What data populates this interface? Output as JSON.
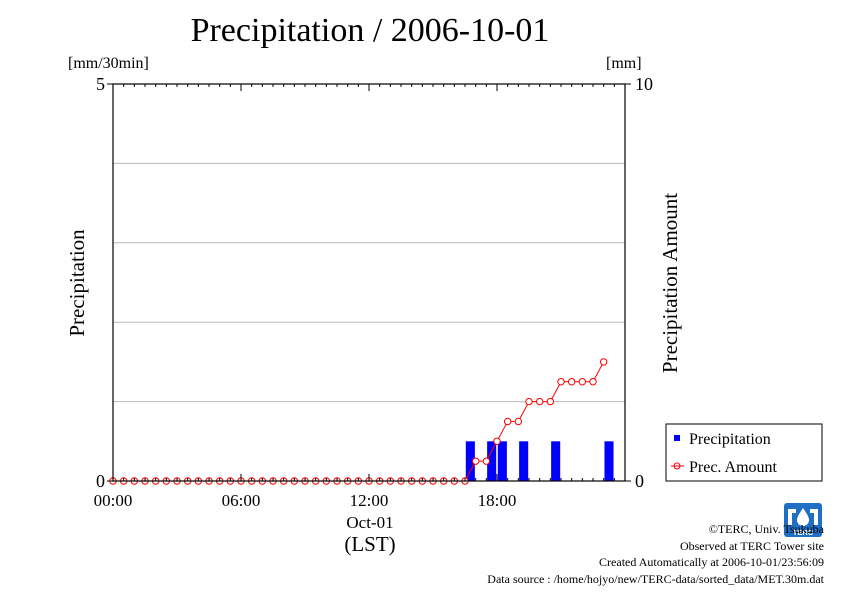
{
  "chart_data": {
    "type": "bar+line",
    "title": "Precipitation / 2006-10-01",
    "left_unit": "[mm/30min]",
    "right_unit": "[mm]",
    "ylabel_left": "Precipitation",
    "ylabel_right": "Precipitation Amount",
    "xlabel_date": "Oct-01",
    "xlabel_tz": "(LST)",
    "x_ticks": [
      "00:00",
      "06:00",
      "12:00",
      "18:00"
    ],
    "y_left_ticks": [
      "0",
      "5"
    ],
    "y_right_ticks": [
      "0",
      "10"
    ],
    "ylim_left": [
      0,
      5
    ],
    "ylim_right": [
      0,
      10
    ],
    "xlim_hours": [
      0,
      24
    ],
    "grid": true,
    "legend_position": "bottom-right",
    "series": [
      {
        "name": "Precipitation",
        "kind": "bar",
        "color": "#0000ff",
        "x_hours": [
          16.5,
          17.5,
          18.0,
          19.0,
          20.5,
          23.0
        ],
        "values": [
          0.5,
          0.5,
          0.5,
          0.5,
          0.5,
          0.5
        ]
      },
      {
        "name": "Prec. Amount",
        "kind": "line",
        "color": "#ff0000",
        "marker": "open-circle",
        "start_hour": 0,
        "step_hours": 0.5,
        "values": [
          0,
          0,
          0,
          0,
          0,
          0,
          0,
          0,
          0,
          0,
          0,
          0,
          0,
          0,
          0,
          0,
          0,
          0,
          0,
          0,
          0,
          0,
          0,
          0,
          0,
          0,
          0,
          0,
          0,
          0,
          0,
          0,
          0,
          0,
          0.5,
          0.5,
          1.0,
          1.5,
          1.5,
          2.0,
          2.0,
          2.0,
          2.5,
          2.5,
          2.5,
          2.5,
          3.0
        ]
      }
    ]
  },
  "credits": {
    "copyright": "©TERC, Univ. Tsukuba",
    "observed": "Observed at TERC Tower site",
    "created": "Created Automatically at 2006-10-01/23:56:09",
    "source": "Data source : /home/hojyo/new/TERC-data/sorted_data/MET.30m.dat"
  },
  "logo": {
    "text": "TERC",
    "color": "#1f6fc4"
  }
}
